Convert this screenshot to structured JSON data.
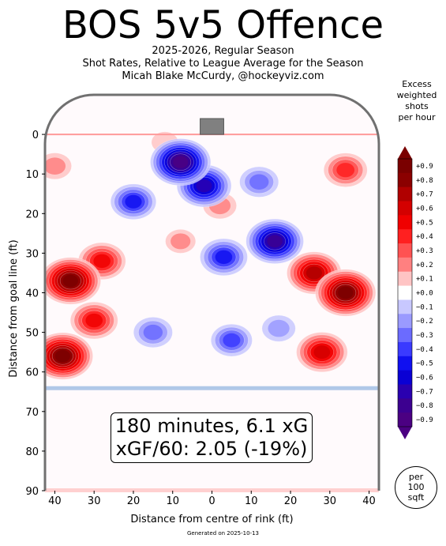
{
  "chart_data": {
    "type": "heatmap",
    "title": "BOS 5v5 Offence",
    "subtitle_lines": [
      "2025-2026, Regular Season",
      "Shot Rates, Relative to League Average for the Season",
      "Micah Blake McCurdy, @hockeyviz.com"
    ],
    "xlabel": "Distance from centre of rink (ft)",
    "ylabel": "Distance from goal line (ft)",
    "xlim": [
      -42.5,
      42.5
    ],
    "ylim": [
      90,
      -10
    ],
    "x_ticks": [
      {
        "value": -40,
        "label": "40"
      },
      {
        "value": -30,
        "label": "30"
      },
      {
        "value": -20,
        "label": "20"
      },
      {
        "value": -10,
        "label": "10"
      },
      {
        "value": 0,
        "label": "0"
      },
      {
        "value": 10,
        "label": "10"
      },
      {
        "value": 20,
        "label": "20"
      },
      {
        "value": 30,
        "label": "30"
      },
      {
        "value": 40,
        "label": "40"
      }
    ],
    "y_ticks": [
      0,
      10,
      20,
      30,
      40,
      50,
      60,
      70,
      80,
      90
    ],
    "colorbar": {
      "title_lines": [
        "Excess",
        "weighted",
        "shots",
        "per hour"
      ],
      "levels": [
        "+0.9",
        "+0.8",
        "+0.7",
        "+0.6",
        "+0.5",
        "+0.4",
        "+0.3",
        "+0.2",
        "+0.1",
        "+0.0",
        "−0.1",
        "−0.2",
        "−0.3",
        "−0.4",
        "−0.5",
        "−0.6",
        "−0.7",
        "−0.8",
        "−0.9"
      ],
      "colors": [
        "#7a0000",
        "#8b0000",
        "#b00000",
        "#d40000",
        "#f00000",
        "#ff2020",
        "#ff5252",
        "#ff8080",
        "#ffc4c4",
        "#ffffff",
        "#c8c8ff",
        "#9a9aff",
        "#6b6bff",
        "#3a3aff",
        "#1010f0",
        "#0a00d4",
        "#2a00b0",
        "#3c0090",
        "#4b0082"
      ]
    },
    "hotspots": [
      {
        "x": -36,
        "y": 37,
        "value": 0.9
      },
      {
        "x": -38,
        "y": 56,
        "value": 0.9
      },
      {
        "x": -28,
        "y": 32,
        "value": 0.5
      },
      {
        "x": -30,
        "y": 47,
        "value": 0.5
      },
      {
        "x": -40,
        "y": 8,
        "value": 0.2
      },
      {
        "x": -12,
        "y": 2,
        "value": 0.1
      },
      {
        "x": 34,
        "y": 40,
        "value": 0.9
      },
      {
        "x": 26,
        "y": 35,
        "value": 0.7
      },
      {
        "x": 28,
        "y": 55,
        "value": 0.6
      },
      {
        "x": 34,
        "y": 9,
        "value": 0.4
      },
      {
        "x": 2,
        "y": 18,
        "value": 0.2
      },
      {
        "x": -8,
        "y": 27,
        "value": 0.15
      },
      {
        "x": -8,
        "y": 7,
        "value": -0.9
      },
      {
        "x": -2,
        "y": 13,
        "value": -0.7
      },
      {
        "x": -20,
        "y": 17,
        "value": -0.45
      },
      {
        "x": 3,
        "y": 31,
        "value": -0.5
      },
      {
        "x": 16,
        "y": 27,
        "value": -0.8
      },
      {
        "x": 12,
        "y": 12,
        "value": -0.3
      },
      {
        "x": 5,
        "y": 52,
        "value": -0.35
      },
      {
        "x": -15,
        "y": 50,
        "value": -0.3
      },
      {
        "x": 17,
        "y": 49,
        "value": -0.2
      }
    ],
    "annotation_lines": [
      "180 minutes, 6.1 xG",
      "xGF/60: 2.05 (-19%)"
    ],
    "scale_note_lines": [
      "per",
      "100",
      "sqft"
    ],
    "footer": "Generated on 2025-10-13"
  },
  "colors": {
    "rink_boards": "#707070",
    "goal_line": "#ff9a9a",
    "blue_line": "#b0c8e8",
    "net": "#808080"
  }
}
